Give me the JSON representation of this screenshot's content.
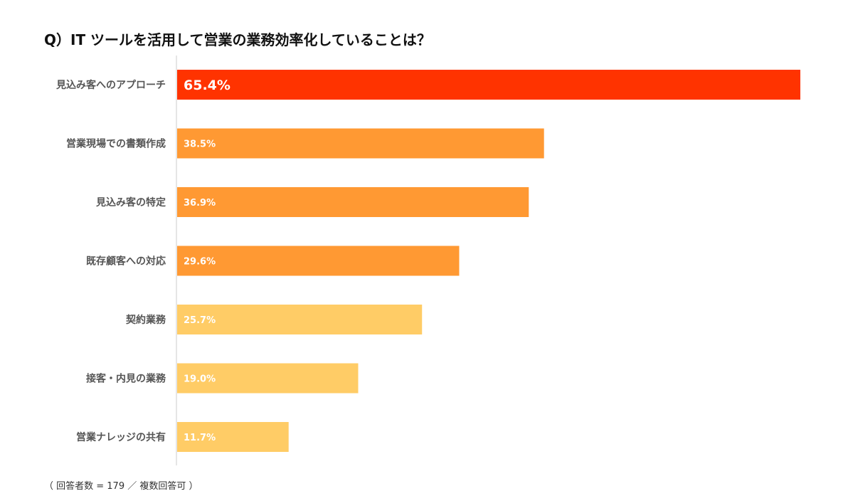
{
  "chart_data": {
    "type": "bar",
    "orientation": "horizontal",
    "title": "Q）IT ツールを活用して営業の業務効率化していることは？",
    "unit": "%",
    "categories": [
      "見込み客へのアプローチ",
      "営業現場での書類作成",
      "見込み客の特定",
      "既存顧客への対応",
      "契約業務",
      "接客・内見の業務",
      "営業ナレッジの共有"
    ],
    "values": [
      65.4,
      38.5,
      36.9,
      29.6,
      25.7,
      19.0,
      11.7
    ],
    "value_labels": [
      "65.4%",
      "38.5%",
      "36.9%",
      "29.6%",
      "25.7%",
      "19.0%",
      "11.7%"
    ],
    "bar_colors": [
      "#ff3300",
      "#ff9933",
      "#ff9933",
      "#ff9933",
      "#ffcc66",
      "#ffcc66",
      "#ffcc66"
    ],
    "xlim": [
      0,
      65.4
    ],
    "grid": false,
    "legend": false,
    "footnote": "（ 回答者数 = 179 ／ 複数回答可 ）"
  },
  "colors": {
    "axis_line": "#cccccc",
    "category_text": "#555555",
    "value_text": "#ffffff"
  }
}
